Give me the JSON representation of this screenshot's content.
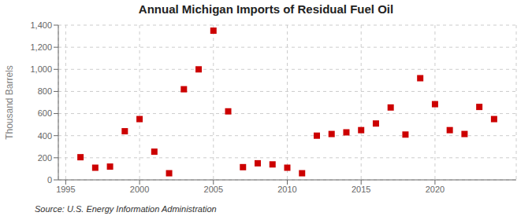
{
  "chart_data": {
    "type": "scatter",
    "title": "Annual Michigan Imports of Residual Fuel Oil",
    "ylabel": "Thousand Barrels",
    "annotations": [
      "Source: U.S. Energy Information Administration"
    ],
    "x": [
      1996,
      1997,
      1998,
      1999,
      2000,
      2001,
      2002,
      2003,
      2004,
      2005,
      2006,
      2007,
      2008,
      2009,
      2010,
      2011,
      2012,
      2013,
      2014,
      2015,
      2016,
      2017,
      2018,
      2019,
      2020,
      2021,
      2022,
      2023,
      2024
    ],
    "values": [
      205,
      110,
      120,
      440,
      550,
      255,
      60,
      820,
      1000,
      1350,
      620,
      115,
      150,
      140,
      110,
      60,
      400,
      415,
      430,
      450,
      510,
      655,
      410,
      920,
      685,
      450,
      415,
      660,
      550
    ],
    "color": "#cc0000",
    "marker": "square",
    "xlim": [
      1994.5,
      2025.5
    ],
    "xticks": [
      1995,
      2000,
      2005,
      2010,
      2015,
      2020
    ],
    "ylim": [
      0,
      1400
    ],
    "yticks": [
      0,
      200,
      400,
      600,
      800,
      {
        "value": 1000,
        "label": "1,000"
      },
      {
        "value": 1200,
        "label": "1,200"
      },
      {
        "value": 1400,
        "label": "1,400"
      }
    ],
    "grid": true
  }
}
